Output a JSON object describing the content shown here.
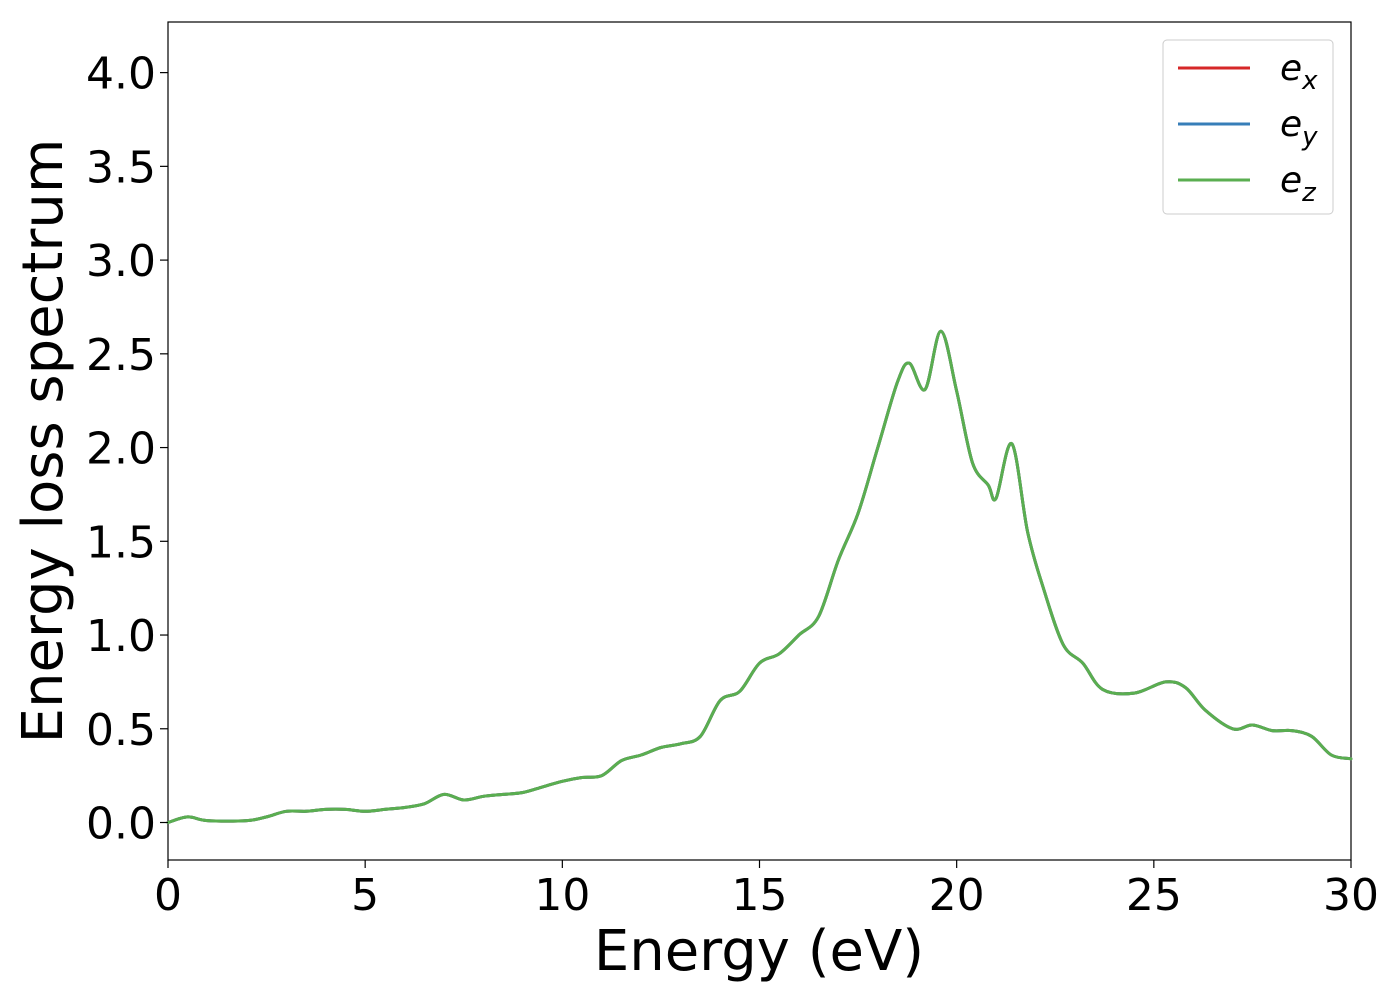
{
  "chart_data": {
    "type": "line",
    "title": "",
    "xlabel": "Energy (eV)",
    "ylabel": "Energy loss spectrum",
    "xlim": [
      0,
      30
    ],
    "ylim": [
      -0.2,
      4.27
    ],
    "xticks": [
      0,
      5,
      10,
      15,
      20,
      25,
      30
    ],
    "xtick_labels": [
      "0",
      "5",
      "10",
      "15",
      "20",
      "25",
      "30"
    ],
    "yticks": [
      0.0,
      0.5,
      1.0,
      1.5,
      2.0,
      2.5,
      3.0,
      3.5,
      4.0
    ],
    "ytick_labels": [
      "0.0",
      "0.5",
      "1.0",
      "1.5",
      "2.0",
      "2.5",
      "3.0",
      "3.5",
      "4.0"
    ],
    "grid": false,
    "legend_position": "top-right",
    "x": [
      0,
      0.5,
      1,
      2,
      2.5,
      3,
      3.5,
      4,
      4.5,
      5,
      5.5,
      6,
      6.5,
      7,
      7.5,
      8,
      8.5,
      9,
      9.5,
      10,
      10.5,
      11,
      11.5,
      12,
      12.5,
      13,
      13.5,
      14,
      14.5,
      15,
      15.5,
      16,
      16.5,
      17,
      17.5,
      18,
      18.5,
      18.8,
      19.2,
      19.6,
      20,
      20.4,
      20.8,
      21,
      21.4,
      21.8,
      22.2,
      22.7,
      23.2,
      23.7,
      24.5,
      25.3,
      25.8,
      26.3,
      27,
      27.5,
      28,
      28.5,
      29,
      29.5,
      30
    ],
    "series": [
      {
        "name": "e_x",
        "label_main": "e",
        "label_sub": "x",
        "color": "#d62728",
        "values": [
          0.0,
          0.03,
          0.01,
          0.01,
          0.03,
          0.06,
          0.06,
          0.07,
          0.07,
          0.06,
          0.07,
          0.08,
          0.1,
          0.15,
          0.12,
          0.14,
          0.15,
          0.16,
          0.19,
          0.22,
          0.24,
          0.25,
          0.33,
          0.36,
          0.4,
          0.42,
          0.46,
          0.65,
          0.7,
          0.85,
          0.9,
          1.0,
          1.1,
          1.4,
          1.65,
          2.0,
          2.35,
          2.45,
          2.31,
          2.62,
          2.3,
          1.92,
          1.8,
          1.73,
          2.02,
          1.55,
          1.25,
          0.95,
          0.85,
          0.71,
          0.69,
          0.75,
          0.72,
          0.6,
          0.5,
          0.52,
          0.49,
          0.49,
          0.46,
          0.36,
          0.34
        ]
      },
      {
        "name": "e_y",
        "label_main": "e",
        "label_sub": "y",
        "color": "#377eb8",
        "values": [
          0.0,
          0.03,
          0.01,
          0.01,
          0.03,
          0.06,
          0.06,
          0.07,
          0.07,
          0.06,
          0.07,
          0.08,
          0.1,
          0.15,
          0.12,
          0.14,
          0.15,
          0.16,
          0.19,
          0.22,
          0.24,
          0.25,
          0.33,
          0.36,
          0.4,
          0.42,
          0.46,
          0.65,
          0.7,
          0.85,
          0.9,
          1.0,
          1.1,
          1.4,
          1.65,
          2.0,
          2.35,
          2.45,
          2.31,
          2.62,
          2.3,
          1.92,
          1.8,
          1.73,
          2.02,
          1.55,
          1.25,
          0.95,
          0.85,
          0.71,
          0.69,
          0.75,
          0.72,
          0.6,
          0.5,
          0.52,
          0.49,
          0.49,
          0.46,
          0.36,
          0.34
        ]
      },
      {
        "name": "e_z",
        "label_main": "e",
        "label_sub": "z",
        "color": "#5aae50",
        "values": [
          0.0,
          0.03,
          0.01,
          0.01,
          0.03,
          0.06,
          0.06,
          0.07,
          0.07,
          0.06,
          0.07,
          0.08,
          0.1,
          0.15,
          0.12,
          0.14,
          0.15,
          0.16,
          0.19,
          0.22,
          0.24,
          0.25,
          0.33,
          0.36,
          0.4,
          0.42,
          0.46,
          0.65,
          0.7,
          0.85,
          0.9,
          1.0,
          1.1,
          1.4,
          1.65,
          2.0,
          2.35,
          2.45,
          2.31,
          2.62,
          2.3,
          1.92,
          1.8,
          1.73,
          2.02,
          1.55,
          1.25,
          0.95,
          0.85,
          0.71,
          0.69,
          0.75,
          0.72,
          0.6,
          0.5,
          0.52,
          0.49,
          0.49,
          0.46,
          0.36,
          0.34
        ]
      }
    ]
  }
}
